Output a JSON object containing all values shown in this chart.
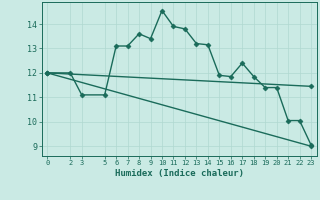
{
  "xlabel": "Humidex (Indice chaleur)",
  "ylabel": "",
  "bg_color": "#caeae4",
  "line_color": "#1a6b5a",
  "grid_color": "#b0d8d0",
  "xlim": [
    -0.5,
    23.5
  ],
  "ylim": [
    8.6,
    14.9
  ],
  "xticks": [
    0,
    2,
    3,
    5,
    6,
    7,
    8,
    9,
    10,
    11,
    12,
    13,
    14,
    15,
    16,
    17,
    18,
    19,
    20,
    21,
    22,
    23
  ],
  "yticks": [
    9,
    10,
    11,
    12,
    13,
    14
  ],
  "curve1_x": [
    0,
    2,
    3,
    5,
    6,
    7,
    8,
    9,
    10,
    11,
    12,
    13,
    14,
    15,
    16,
    17,
    18,
    19,
    20,
    21,
    22,
    23
  ],
  "curve1_y": [
    12.0,
    12.0,
    11.1,
    11.1,
    13.1,
    13.1,
    13.6,
    13.4,
    14.55,
    13.9,
    13.8,
    13.2,
    13.15,
    11.9,
    11.85,
    12.4,
    11.85,
    11.4,
    11.4,
    10.05,
    10.05,
    9.05
  ],
  "curve2_x": [
    0,
    23
  ],
  "curve2_y": [
    12.0,
    11.45
  ],
  "curve3_x": [
    0,
    23
  ],
  "curve3_y": [
    12.0,
    9.0
  ],
  "markersize": 2.5,
  "linewidth": 1.0
}
